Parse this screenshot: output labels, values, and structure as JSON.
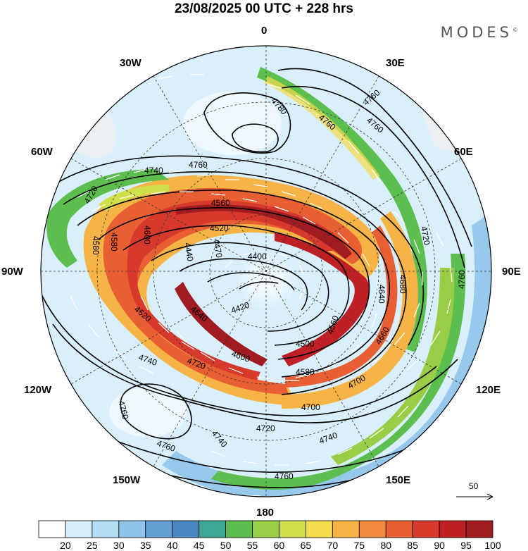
{
  "header": {
    "title": "23/08/2025  00 UTC  + 228 hrs",
    "brand": "MODES",
    "brand_mark": "©"
  },
  "map": {
    "projection": "south-polar-stereographic",
    "longitude_labels": {
      "top": "0",
      "top_right": "30E",
      "upper_right": "60E",
      "right": "90E",
      "lower_right": "120E",
      "bottom_right": "150E",
      "bottom": "180",
      "bottom_left": "150W",
      "lower_left": "120W",
      "left": "90W",
      "upper_left": "60W",
      "top_left": "30W"
    },
    "contour_labels": [
      "4780",
      "4760",
      "4760",
      "4760",
      "4740",
      "4760",
      "4720",
      "4560",
      "4520",
      "4580",
      "4580",
      "4600",
      "4470",
      "4400",
      "4440",
      "4420",
      "4620",
      "4640",
      "4720",
      "4560",
      "4640",
      "4680",
      "4500",
      "4580",
      "4600",
      "4660",
      "4700",
      "4700",
      "4740",
      "4720",
      "4720",
      "4740",
      "4740",
      "4760",
      "4760",
      "4760",
      "4760"
    ],
    "reference_vector": "50"
  },
  "colorbar": {
    "labels": [
      "20",
      "25",
      "30",
      "35",
      "40",
      "45",
      "50",
      "55",
      "60",
      "65",
      "70",
      "75",
      "80",
      "85",
      "90",
      "95",
      "100"
    ],
    "colors": [
      "#ffffff",
      "#d6eefc",
      "#b4dcf5",
      "#8ec4ea",
      "#649ed3",
      "#4a86c2",
      "#3ea896",
      "#5cbe4e",
      "#9acd46",
      "#cfe04c",
      "#f5dc4b",
      "#f6b447",
      "#f28a3e",
      "#e85f33",
      "#d73a2c",
      "#bf2026",
      "#a01c21"
    ]
  }
}
